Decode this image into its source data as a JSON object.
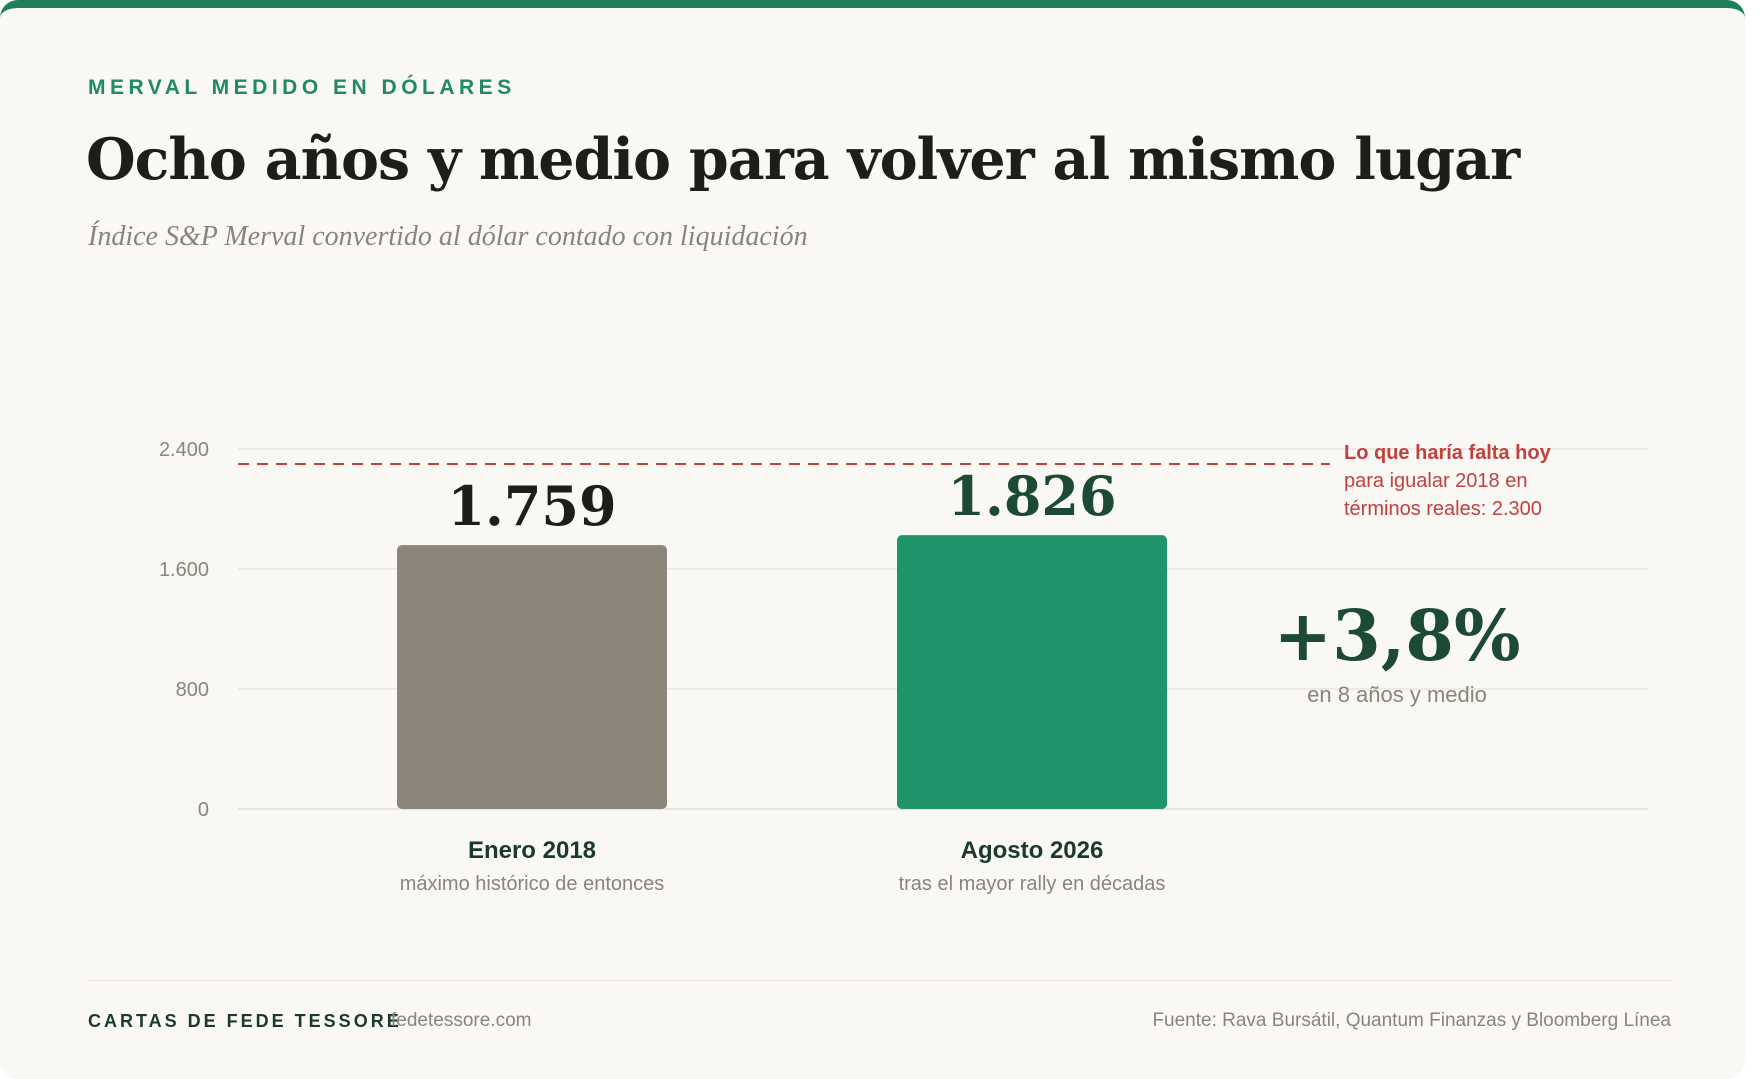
{
  "header": {
    "eyebrow": "MERVAL MEDIDO EN DÓLARES",
    "title": "Ocho años y medio para volver al mismo lugar",
    "subtitle": "Índice S&P Merval convertido al dólar contado con liquidación"
  },
  "chart_data": {
    "type": "bar",
    "title": "Ocho años y medio para volver al mismo lugar",
    "subtitle": "Índice S&P Merval convertido al dólar contado con liquidación",
    "xlabel": "",
    "ylabel": "",
    "ylim": [
      0,
      2400
    ],
    "yticks": [
      0,
      800,
      1600,
      2400
    ],
    "ytick_labels": [
      "0",
      "800",
      "1.600",
      "2.400"
    ],
    "grid": true,
    "categories": [
      "Enero 2018",
      "Agosto 2026"
    ],
    "category_sublabels": [
      "máximo histórico de entonces",
      "tras el mayor rally en décadas"
    ],
    "values": [
      1759,
      1826
    ],
    "value_labels": [
      "1.759",
      "1.826"
    ],
    "bar_colors": [
      "#8c8579",
      "#20946a"
    ],
    "value_label_colors": [
      "#1d1d1b",
      "#1c4a32"
    ],
    "reference_line": {
      "value": 2300,
      "color": "#c0413f",
      "label_lines": [
        "Lo que haría falta hoy",
        "para igualar 2018 en",
        "términos reales: 2.300"
      ]
    },
    "annotation": {
      "value_text": "+3,8%",
      "caption": "en 8 años y medio",
      "color": "#1c4a32"
    }
  },
  "footer": {
    "brand": "CARTAS DE FEDE TESSORE",
    "site": "fedetessore.com",
    "source": "Fuente: Rava Bursátil, Quantum Finanzas y Bloomberg Línea"
  },
  "colors": {
    "accent": "#1f7f5a",
    "background": "#f9f8f4",
    "grid": "#e4e1da",
    "muted_text": "#8a857b"
  }
}
